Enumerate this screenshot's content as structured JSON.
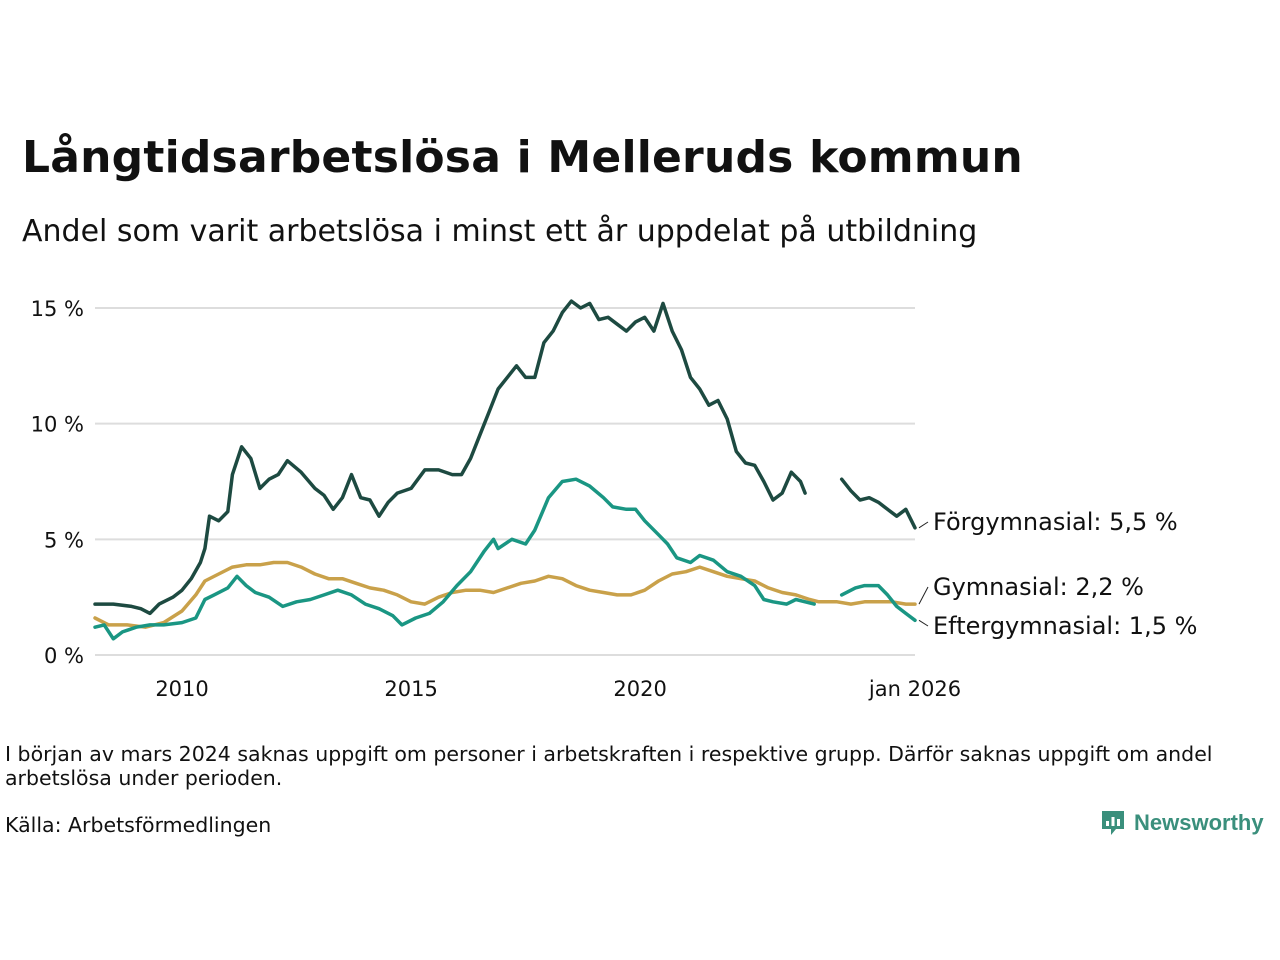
{
  "title": "Långtidsarbetslösa i Melleruds kommun",
  "subtitle": "Andel som varit arbetslösa i minst ett år uppdelat på utbildning",
  "note": "I början av mars 2024 saknas uppgift om personer i arbetskraften i respektive grupp. Därför saknas uppgift om andel arbetslösa under perioden.",
  "source": "Källa: Arbetsförmedlingen",
  "logo": {
    "text": "Newsworthy",
    "icon": "newsworthy-logo-icon",
    "color": "#3a8f7c"
  },
  "chart_data": {
    "type": "line",
    "x_unit": "year (decimal)",
    "xlim": [
      2008.1,
      2026.0
    ],
    "ylim": [
      0,
      15.5
    ],
    "y_ticks": [
      0,
      5,
      10,
      15
    ],
    "y_tick_labels": [
      "0 %",
      "5 %",
      "10 %",
      "15 %"
    ],
    "x_ticks": [
      2010,
      2015,
      2020,
      2026.0
    ],
    "x_tick_labels": [
      "2010",
      "2015",
      "2020",
      "jan 2026"
    ],
    "grid": "horizontal",
    "gap": [
      2023.9,
      2024.3
    ],
    "series": [
      {
        "name": "Förgymnasial",
        "label": "Förgymnasial: 5,5 %",
        "color": "#1d4a41",
        "points": [
          [
            2008.1,
            2.2
          ],
          [
            2008.5,
            2.2
          ],
          [
            2008.9,
            2.1
          ],
          [
            2009.1,
            2.0
          ],
          [
            2009.3,
            1.8
          ],
          [
            2009.5,
            2.2
          ],
          [
            2009.8,
            2.5
          ],
          [
            2010.0,
            2.8
          ],
          [
            2010.2,
            3.3
          ],
          [
            2010.4,
            4.0
          ],
          [
            2010.5,
            4.6
          ],
          [
            2010.6,
            6.0
          ],
          [
            2010.8,
            5.8
          ],
          [
            2011.0,
            6.2
          ],
          [
            2011.1,
            7.8
          ],
          [
            2011.3,
            9.0
          ],
          [
            2011.5,
            8.5
          ],
          [
            2011.7,
            7.2
          ],
          [
            2011.9,
            7.6
          ],
          [
            2012.1,
            7.8
          ],
          [
            2012.3,
            8.4
          ],
          [
            2012.6,
            7.9
          ],
          [
            2012.9,
            7.2
          ],
          [
            2013.1,
            6.9
          ],
          [
            2013.3,
            6.3
          ],
          [
            2013.5,
            6.8
          ],
          [
            2013.7,
            7.8
          ],
          [
            2013.9,
            6.8
          ],
          [
            2014.1,
            6.7
          ],
          [
            2014.3,
            6.0
          ],
          [
            2014.5,
            6.6
          ],
          [
            2014.7,
            7.0
          ],
          [
            2015.0,
            7.2
          ],
          [
            2015.3,
            8.0
          ],
          [
            2015.6,
            8.0
          ],
          [
            2015.9,
            7.8
          ],
          [
            2016.1,
            7.8
          ],
          [
            2016.3,
            8.5
          ],
          [
            2016.5,
            9.5
          ],
          [
            2016.7,
            10.5
          ],
          [
            2016.9,
            11.5
          ],
          [
            2017.1,
            12.0
          ],
          [
            2017.3,
            12.5
          ],
          [
            2017.5,
            12.0
          ],
          [
            2017.7,
            12.0
          ],
          [
            2017.9,
            13.5
          ],
          [
            2018.1,
            14.0
          ],
          [
            2018.3,
            14.8
          ],
          [
            2018.5,
            15.3
          ],
          [
            2018.7,
            15.0
          ],
          [
            2018.9,
            15.2
          ],
          [
            2019.1,
            14.5
          ],
          [
            2019.3,
            14.6
          ],
          [
            2019.5,
            14.3
          ],
          [
            2019.7,
            14.0
          ],
          [
            2019.9,
            14.4
          ],
          [
            2020.1,
            14.6
          ],
          [
            2020.3,
            14.0
          ],
          [
            2020.5,
            15.2
          ],
          [
            2020.7,
            14.0
          ],
          [
            2020.9,
            13.2
          ],
          [
            2021.1,
            12.0
          ],
          [
            2021.3,
            11.5
          ],
          [
            2021.5,
            10.8
          ],
          [
            2021.7,
            11.0
          ],
          [
            2021.9,
            10.2
          ],
          [
            2022.1,
            8.8
          ],
          [
            2022.3,
            8.3
          ],
          [
            2022.5,
            8.2
          ],
          [
            2022.7,
            7.5
          ],
          [
            2022.9,
            6.7
          ],
          [
            2023.1,
            7.0
          ],
          [
            2023.3,
            7.9
          ],
          [
            2023.5,
            7.5
          ],
          [
            2023.6,
            7.0
          ],
          [
            2024.4,
            7.6
          ],
          [
            2024.6,
            7.1
          ],
          [
            2024.8,
            6.7
          ],
          [
            2025.0,
            6.8
          ],
          [
            2025.2,
            6.6
          ],
          [
            2025.4,
            6.3
          ],
          [
            2025.6,
            6.0
          ],
          [
            2025.8,
            6.3
          ],
          [
            2026.0,
            5.5
          ]
        ]
      },
      {
        "name": "Gymnasial",
        "label": "Gymnasial: 2,2 %",
        "color": "#c9a14a",
        "points": [
          [
            2008.1,
            1.6
          ],
          [
            2008.4,
            1.3
          ],
          [
            2008.8,
            1.3
          ],
          [
            2009.2,
            1.2
          ],
          [
            2009.6,
            1.4
          ],
          [
            2010.0,
            1.9
          ],
          [
            2010.3,
            2.6
          ],
          [
            2010.5,
            3.2
          ],
          [
            2010.8,
            3.5
          ],
          [
            2011.1,
            3.8
          ],
          [
            2011.4,
            3.9
          ],
          [
            2011.7,
            3.9
          ],
          [
            2012.0,
            4.0
          ],
          [
            2012.3,
            4.0
          ],
          [
            2012.6,
            3.8
          ],
          [
            2012.9,
            3.5
          ],
          [
            2013.2,
            3.3
          ],
          [
            2013.5,
            3.3
          ],
          [
            2013.8,
            3.1
          ],
          [
            2014.1,
            2.9
          ],
          [
            2014.4,
            2.8
          ],
          [
            2014.7,
            2.6
          ],
          [
            2015.0,
            2.3
          ],
          [
            2015.3,
            2.2
          ],
          [
            2015.6,
            2.5
          ],
          [
            2015.9,
            2.7
          ],
          [
            2016.2,
            2.8
          ],
          [
            2016.5,
            2.8
          ],
          [
            2016.8,
            2.7
          ],
          [
            2017.1,
            2.9
          ],
          [
            2017.4,
            3.1
          ],
          [
            2017.7,
            3.2
          ],
          [
            2018.0,
            3.4
          ],
          [
            2018.3,
            3.3
          ],
          [
            2018.6,
            3.0
          ],
          [
            2018.9,
            2.8
          ],
          [
            2019.2,
            2.7
          ],
          [
            2019.5,
            2.6
          ],
          [
            2019.8,
            2.6
          ],
          [
            2020.1,
            2.8
          ],
          [
            2020.4,
            3.2
          ],
          [
            2020.7,
            3.5
          ],
          [
            2021.0,
            3.6
          ],
          [
            2021.3,
            3.8
          ],
          [
            2021.6,
            3.6
          ],
          [
            2021.9,
            3.4
          ],
          [
            2022.2,
            3.3
          ],
          [
            2022.5,
            3.2
          ],
          [
            2022.8,
            2.9
          ],
          [
            2023.1,
            2.7
          ],
          [
            2023.4,
            2.6
          ],
          [
            2023.7,
            2.4
          ],
          [
            2023.9,
            2.3
          ],
          [
            2024.3,
            2.3
          ],
          [
            2024.6,
            2.2
          ],
          [
            2024.9,
            2.3
          ],
          [
            2025.2,
            2.3
          ],
          [
            2025.5,
            2.3
          ],
          [
            2025.8,
            2.2
          ],
          [
            2026.0,
            2.2
          ]
        ]
      },
      {
        "name": "Eftergymnasial",
        "label": "Eftergymnasial: 1,5 %",
        "color": "#1a9683",
        "points": [
          [
            2008.1,
            1.2
          ],
          [
            2008.3,
            1.3
          ],
          [
            2008.5,
            0.7
          ],
          [
            2008.7,
            1.0
          ],
          [
            2009.0,
            1.2
          ],
          [
            2009.3,
            1.3
          ],
          [
            2009.6,
            1.3
          ],
          [
            2010.0,
            1.4
          ],
          [
            2010.3,
            1.6
          ],
          [
            2010.5,
            2.4
          ],
          [
            2010.7,
            2.6
          ],
          [
            2011.0,
            2.9
          ],
          [
            2011.2,
            3.4
          ],
          [
            2011.4,
            3.0
          ],
          [
            2011.6,
            2.7
          ],
          [
            2011.9,
            2.5
          ],
          [
            2012.2,
            2.1
          ],
          [
            2012.5,
            2.3
          ],
          [
            2012.8,
            2.4
          ],
          [
            2013.1,
            2.6
          ],
          [
            2013.4,
            2.8
          ],
          [
            2013.7,
            2.6
          ],
          [
            2014.0,
            2.2
          ],
          [
            2014.3,
            2.0
          ],
          [
            2014.6,
            1.7
          ],
          [
            2014.8,
            1.3
          ],
          [
            2015.1,
            1.6
          ],
          [
            2015.4,
            1.8
          ],
          [
            2015.7,
            2.3
          ],
          [
            2016.0,
            3.0
          ],
          [
            2016.3,
            3.6
          ],
          [
            2016.6,
            4.5
          ],
          [
            2016.8,
            5.0
          ],
          [
            2016.9,
            4.6
          ],
          [
            2017.2,
            5.0
          ],
          [
            2017.5,
            4.8
          ],
          [
            2017.7,
            5.4
          ],
          [
            2018.0,
            6.8
          ],
          [
            2018.3,
            7.5
          ],
          [
            2018.6,
            7.6
          ],
          [
            2018.9,
            7.3
          ],
          [
            2019.2,
            6.8
          ],
          [
            2019.4,
            6.4
          ],
          [
            2019.7,
            6.3
          ],
          [
            2019.9,
            6.3
          ],
          [
            2020.1,
            5.8
          ],
          [
            2020.4,
            5.2
          ],
          [
            2020.6,
            4.8
          ],
          [
            2020.8,
            4.2
          ],
          [
            2021.1,
            4.0
          ],
          [
            2021.3,
            4.3
          ],
          [
            2021.6,
            4.1
          ],
          [
            2021.9,
            3.6
          ],
          [
            2022.2,
            3.4
          ],
          [
            2022.5,
            3.0
          ],
          [
            2022.7,
            2.4
          ],
          [
            2022.9,
            2.3
          ],
          [
            2023.2,
            2.2
          ],
          [
            2023.4,
            2.4
          ],
          [
            2023.6,
            2.3
          ],
          [
            2023.8,
            2.2
          ],
          [
            2024.4,
            2.6
          ],
          [
            2024.7,
            2.9
          ],
          [
            2024.9,
            3.0
          ],
          [
            2025.2,
            3.0
          ],
          [
            2025.4,
            2.6
          ],
          [
            2025.6,
            2.1
          ],
          [
            2025.8,
            1.8
          ],
          [
            2026.0,
            1.5
          ]
        ]
      }
    ]
  }
}
